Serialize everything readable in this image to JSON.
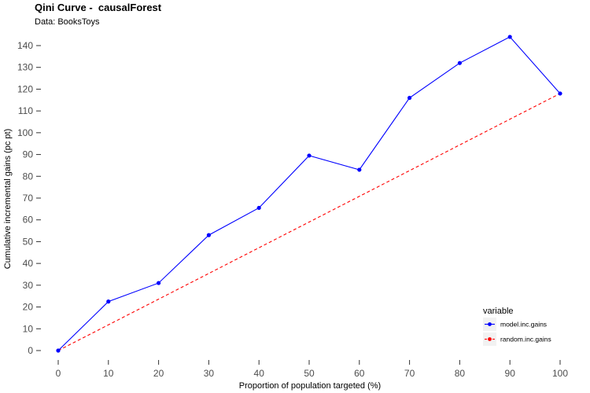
{
  "title": "Qini Curve -  causalForest",
  "subtitle": "Data: BooksToys",
  "chart_data": {
    "type": "line",
    "xlabel": "Proportion of population targeted (%)",
    "ylabel": "Cumulative incremental gains (pc pt)",
    "xlim": [
      0,
      100
    ],
    "ylim": [
      0,
      140
    ],
    "x_ticks": [
      0,
      10,
      20,
      30,
      40,
      50,
      60,
      70,
      80,
      90,
      100
    ],
    "y_ticks": [
      0,
      10,
      20,
      30,
      40,
      50,
      60,
      70,
      80,
      90,
      100,
      110,
      120,
      130,
      140
    ],
    "x": [
      0,
      10,
      20,
      30,
      40,
      50,
      60,
      70,
      80,
      90,
      100
    ],
    "grid": false,
    "legend_position": "bottom-right",
    "legend_title": "variable",
    "series": [
      {
        "name": "model.inc.gains",
        "color": "#0000ff",
        "line_style": "solid",
        "markers": true,
        "values": [
          0,
          22.5,
          31,
          53,
          65.5,
          89.5,
          83,
          116,
          132,
          144,
          118
        ]
      },
      {
        "name": "random.inc.gains",
        "color": "#ff0000",
        "line_style": "dashed",
        "markers": false,
        "values": [
          0,
          11.8,
          23.6,
          35.4,
          47.2,
          59,
          70.8,
          82.6,
          94.4,
          106.2,
          118
        ]
      }
    ]
  }
}
